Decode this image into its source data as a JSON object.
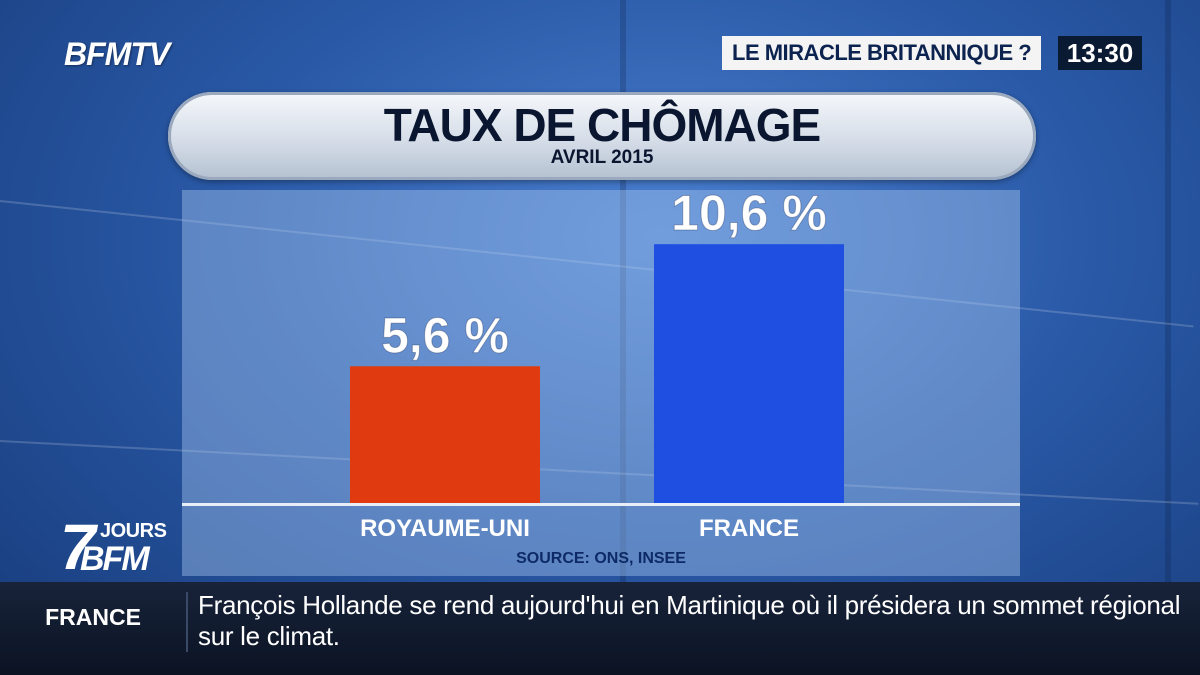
{
  "channel": {
    "logo": "BFMTV",
    "headline": "LE MIRACLE BRITANNIQUE ?",
    "clock": "13:30"
  },
  "show_logo": {
    "seven": "7",
    "jours": "JOURS",
    "bfm": "BFM"
  },
  "chart_data": {
    "type": "bar",
    "title": "TAUX DE CHÔMAGE",
    "subtitle": "AVRIL 2015",
    "categories": [
      "ROYAUME-UNI",
      "FRANCE"
    ],
    "values": [
      5.6,
      10.6
    ],
    "value_labels": [
      "5,6 %",
      "10,6 %"
    ],
    "colors": [
      "#e03a10",
      "#1f4fe0"
    ],
    "source": "SOURCE: ONS, INSEE",
    "ylim": [
      0,
      12
    ],
    "grid": false,
    "legend": "none"
  },
  "ticker": {
    "label": "FRANCE",
    "text": "François Hollande se rend aujourd'hui en Martinique où il présidera un sommet régional sur le climat."
  }
}
